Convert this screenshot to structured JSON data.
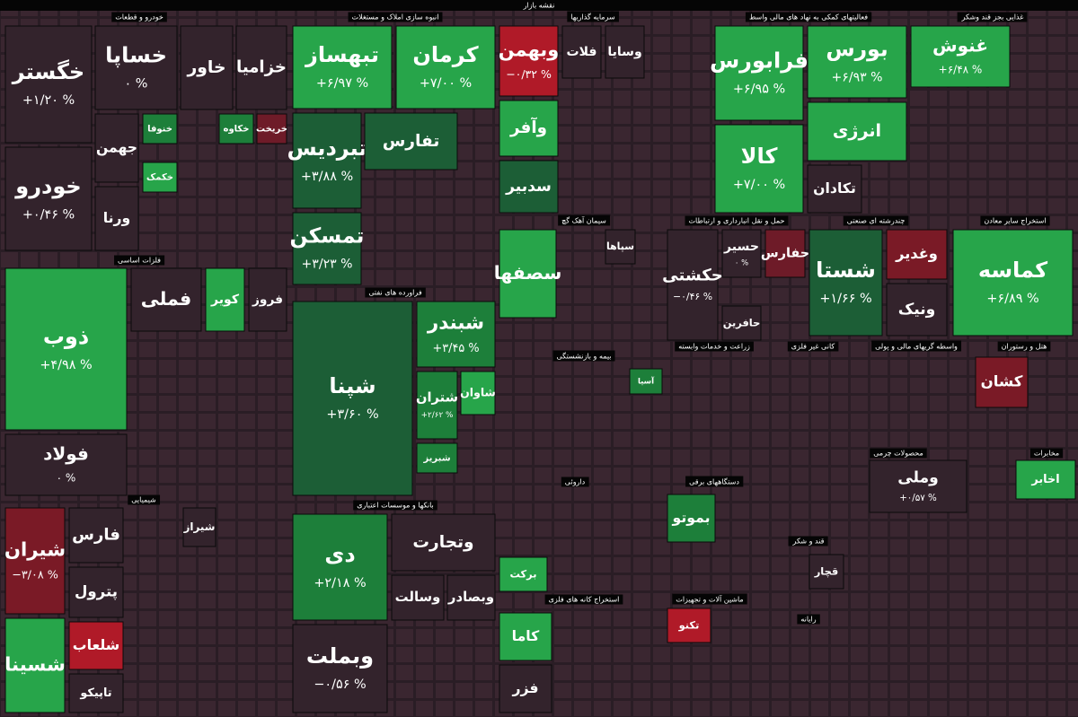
{
  "title": "نقشه بازار",
  "sectors": [
    {
      "name": "خودرو و قطعات",
      "tiles": [
        {
          "symbol": "خگستر",
          "change": "+۱/۲۰ %",
          "color": "#33232c"
        },
        {
          "symbol": "خساپا",
          "change": "۰ %",
          "color": "#33232c"
        },
        {
          "symbol": "خودرو",
          "change": "+۰/۴۶ %",
          "color": "#33232c"
        },
        {
          "symbol": "خاور",
          "color": "#33232c"
        },
        {
          "symbol": "خزامیا",
          "color": "#33232c"
        },
        {
          "symbol": "جهمن",
          "color": "#33232c"
        },
        {
          "symbol": "خنوفا",
          "color": "#1d7f3a"
        },
        {
          "symbol": "خکمک",
          "color": "#27a54a"
        },
        {
          "symbol": "خریخت",
          "color": "#6e1b28"
        },
        {
          "symbol": "خکاوه",
          "color": "#1d7f3a"
        },
        {
          "symbol": "ورنا",
          "color": "#33232c"
        }
      ]
    },
    {
      "name": "فلزات اساسی",
      "tiles": [
        {
          "symbol": "ذوب",
          "change": "+۴/۹۸ %",
          "color": "#27a54a"
        },
        {
          "symbol": "فولاد",
          "change": "۰ %",
          "color": "#33232c"
        },
        {
          "symbol": "فملی",
          "color": "#33232c"
        },
        {
          "symbol": "کویر",
          "color": "#27a54a"
        },
        {
          "symbol": "فروز",
          "color": "#33232c"
        }
      ]
    },
    {
      "name": "شیمیایی",
      "tiles": [
        {
          "symbol": "شیران",
          "change": "−۳/۰۸ %",
          "color": "#7a1a26"
        },
        {
          "symbol": "فارس",
          "color": "#33232c"
        },
        {
          "symbol": "پترول",
          "color": "#33232c"
        },
        {
          "symbol": "شسینا",
          "color": "#27a54a"
        },
        {
          "symbol": "شلعاب",
          "color": "#b01a28"
        },
        {
          "symbol": "تاپیکو",
          "color": "#33232c"
        },
        {
          "symbol": "شیراز",
          "color": "#33232c"
        }
      ]
    },
    {
      "name": "انبوه سازی املاک و مستغلات",
      "tiles": [
        {
          "symbol": "تبهساز",
          "change": "+۶/۹۷ %",
          "color": "#27a54a"
        },
        {
          "symbol": "کرمان",
          "change": "+۷/۰۰ %",
          "color": "#27a54a"
        },
        {
          "symbol": "تبردیس",
          "change": "+۳/۸۸ %",
          "color": "#1c5e36"
        },
        {
          "symbol": "تفارس",
          "color": "#1c5e36"
        },
        {
          "symbol": "تمسکن",
          "change": "+۳/۲۳ %",
          "color": "#1c5e36"
        }
      ]
    },
    {
      "name": "فراورده های نفتی",
      "tiles": [
        {
          "symbol": "شپنا",
          "change": "+۳/۶۰ %",
          "color": "#1c5e36"
        },
        {
          "symbol": "شبندر",
          "change": "+۳/۴۵ %",
          "color": "#1d7f3a"
        },
        {
          "symbol": "شتران",
          "change": "+۲/۶۲ %",
          "color": "#1d7f3a"
        },
        {
          "symbol": "شاوان",
          "color": "#27a54a"
        },
        {
          "symbol": "شبریز",
          "color": "#1d7f3a"
        }
      ]
    },
    {
      "name": "بانکها و موسسات اعتباری",
      "tiles": [
        {
          "symbol": "دی",
          "change": "+۲/۱۸ %",
          "color": "#1d7f3a"
        },
        {
          "symbol": "وبملت",
          "change": "−۰/۵۶ %",
          "color": "#33232c"
        },
        {
          "symbol": "وتجارت",
          "color": "#33232c"
        },
        {
          "symbol": "وسالت",
          "color": "#33232c"
        },
        {
          "symbol": "وبصادر",
          "color": "#33232c"
        }
      ]
    },
    {
      "name": "سرمایه گذاریها",
      "tiles": [
        {
          "symbol": "وبهمن",
          "change": "−۰/۳۲ %",
          "color": "#b01a28"
        },
        {
          "symbol": "وآفر",
          "color": "#27a54a"
        },
        {
          "symbol": "سدبیر",
          "color": "#1c5e36"
        },
        {
          "symbol": "فلات",
          "color": "#33232c"
        },
        {
          "symbol": "وسایا",
          "color": "#33232c"
        }
      ]
    },
    {
      "name": "فعالیتهای کمکی به نهاد های مالی واسط",
      "tiles": [
        {
          "symbol": "فرابورس",
          "change": "+۶/۹۵ %",
          "color": "#27a54a"
        },
        {
          "symbol": "بورس",
          "change": "+۶/۹۳ %",
          "color": "#27a54a"
        },
        {
          "symbol": "کالا",
          "change": "+۷/۰۰ %",
          "color": "#27a54a"
        },
        {
          "symbol": "انرژی",
          "color": "#27a54a"
        },
        {
          "symbol": "تکادان",
          "color": "#33232c"
        }
      ]
    },
    {
      "name": "غذایی بجز قند وشکر",
      "tiles": [
        {
          "symbol": "غنوش",
          "change": "+۶/۴۸ %",
          "color": "#27a54a"
        }
      ]
    },
    {
      "name": "سیمان آهک گچ",
      "tiles": [
        {
          "symbol": "سصفها",
          "color": "#27a54a"
        },
        {
          "symbol": "سپاها",
          "color": "#33232c"
        }
      ]
    },
    {
      "name": "حمل و نقل انبارداری و ارتباطات",
      "tiles": [
        {
          "symbol": "حکشتی",
          "change": "−۰/۴۶ %",
          "color": "#33232c"
        },
        {
          "symbol": "حسیر",
          "change": "۰ %",
          "color": "#33232c"
        },
        {
          "symbol": "حفارس",
          "color": "#6e1b28"
        },
        {
          "symbol": "حافرین",
          "color": "#33232c"
        }
      ]
    },
    {
      "name": "چندرشته ای صنعتی",
      "tiles": [
        {
          "symbol": "شستا",
          "change": "+۱/۶۶ %",
          "color": "#1c5e36"
        },
        {
          "symbol": "وغدیر",
          "color": "#7a1a26"
        },
        {
          "symbol": "ونیک",
          "color": "#33232c"
        }
      ]
    },
    {
      "name": "استخراج سایر معادن",
      "tiles": [
        {
          "symbol": "کماسه",
          "change": "+۶/۸۹ %",
          "color": "#27a54a"
        }
      ]
    },
    {
      "name": "بیمه و بازنشستگی",
      "tiles": [
        {
          "symbol": "آسیا",
          "color": "#1d7f3a"
        }
      ]
    },
    {
      "name": "زراعت و خدمات وابسته",
      "tiles": []
    },
    {
      "name": "کانی غیر فلزی",
      "tiles": []
    },
    {
      "name": "واسطه گریهای مالی و پولی",
      "tiles": []
    },
    {
      "name": "هتل و رستوران",
      "tiles": [
        {
          "symbol": "کشان",
          "color": "#7a1a26"
        }
      ]
    },
    {
      "name": "محصولات چرمی",
      "tiles": [
        {
          "symbol": "وملی",
          "change": "+۰/۵۷ %",
          "color": "#33232c"
        }
      ]
    },
    {
      "name": "مخابرات",
      "tiles": [
        {
          "symbol": "اخابر",
          "color": "#27a54a"
        }
      ]
    },
    {
      "name": "داروئی",
      "tiles": [
        {
          "symbol": "برکت",
          "color": "#27a54a"
        }
      ]
    },
    {
      "name": "دستگاههای برقی",
      "tiles": [
        {
          "symbol": "بموتو",
          "color": "#1d7f3a"
        }
      ]
    },
    {
      "name": "ماشین آلات و تجهیزات",
      "tiles": [
        {
          "symbol": "تکنو",
          "color": "#b01a28"
        }
      ]
    },
    {
      "name": "استخراج کانه های فلزی",
      "tiles": [
        {
          "symbol": "کاما",
          "color": "#27a54a"
        },
        {
          "symbol": "فزر",
          "color": "#33232c"
        }
      ]
    },
    {
      "name": "رایانه",
      "tiles": []
    },
    {
      "name": "قند و شکر",
      "tiles": [
        {
          "symbol": "قچار",
          "color": "#33232c"
        }
      ]
    }
  ]
}
